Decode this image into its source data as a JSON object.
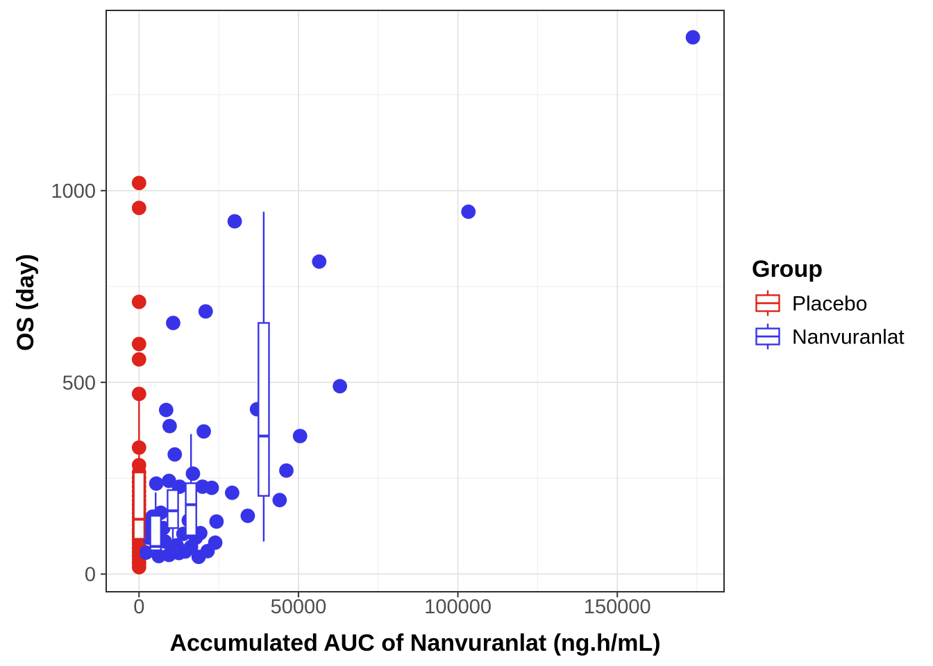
{
  "chart_data": {
    "type": "scatter",
    "overlays": [
      "boxplot"
    ],
    "title": "",
    "xlabel": "Accumulated AUC of Nanvuranlat (ng.h/mL)",
    "ylabel": "OS (day)",
    "x_ticks": [
      0,
      50000,
      100000,
      150000
    ],
    "x_minor_ticks": [
      25000,
      75000,
      125000,
      175000
    ],
    "y_ticks": [
      0,
      500,
      1000
    ],
    "y_minor_ticks": [
      250,
      750,
      1250
    ],
    "xlim": [
      -10500,
      183500
    ],
    "ylim": [
      -46,
      1470
    ],
    "grid": "major+minor",
    "legend": {
      "title": "Group",
      "position": "right",
      "items": [
        {
          "label": "Placebo",
          "color": "#dd231b"
        },
        {
          "label": "Nanvuranlat",
          "color": "#3734e8"
        }
      ]
    },
    "series": [
      {
        "name": "Placebo",
        "color": "#dd231b",
        "points": [
          [
            0,
            1020
          ],
          [
            0,
            955
          ],
          [
            0,
            710
          ],
          [
            0,
            600
          ],
          [
            0,
            560
          ],
          [
            0,
            470
          ],
          [
            0,
            330
          ],
          [
            0,
            284
          ],
          [
            0,
            265
          ],
          [
            0,
            252
          ],
          [
            0,
            240
          ],
          [
            0,
            228
          ],
          [
            0,
            216
          ],
          [
            0,
            204
          ],
          [
            0,
            192
          ],
          [
            0,
            181
          ],
          [
            0,
            170
          ],
          [
            0,
            159
          ],
          [
            0,
            148
          ],
          [
            0,
            138
          ],
          [
            0,
            128
          ],
          [
            0,
            118
          ],
          [
            0,
            108
          ],
          [
            0,
            98
          ],
          [
            0,
            88
          ],
          [
            0,
            78
          ],
          [
            0,
            68
          ],
          [
            0,
            58
          ],
          [
            0,
            48
          ],
          [
            0,
            38
          ],
          [
            0,
            28
          ],
          [
            0,
            18
          ]
        ]
      },
      {
        "name": "Nanvuranlat",
        "color": "#3734e8",
        "points": [
          [
            173700,
            1400
          ],
          [
            103300,
            945
          ],
          [
            30000,
            920
          ],
          [
            56500,
            815
          ],
          [
            20900,
            685
          ],
          [
            10700,
            655
          ],
          [
            63000,
            490
          ],
          [
            37000,
            430
          ],
          [
            8500,
            428
          ],
          [
            9600,
            386
          ],
          [
            20300,
            372
          ],
          [
            50500,
            360
          ],
          [
            11200,
            312
          ],
          [
            46200,
            270
          ],
          [
            16900,
            262
          ],
          [
            29200,
            212
          ],
          [
            5400,
            236
          ],
          [
            9400,
            243
          ],
          [
            12700,
            228
          ],
          [
            19900,
            228
          ],
          [
            22800,
            225
          ],
          [
            44100,
            193
          ],
          [
            34100,
            152
          ],
          [
            24300,
            137
          ],
          [
            23900,
            82
          ],
          [
            19200,
            107
          ],
          [
            2200,
            56
          ],
          [
            6200,
            47
          ],
          [
            9400,
            50
          ],
          [
            14500,
            59
          ],
          [
            16300,
            71
          ],
          [
            4300,
            150
          ],
          [
            7600,
            120
          ],
          [
            13900,
            105
          ],
          [
            3200,
            95
          ],
          [
            11800,
            75
          ],
          [
            17800,
            95
          ],
          [
            6800,
            160
          ],
          [
            15600,
            140
          ],
          [
            2900,
            125
          ],
          [
            10400,
            62
          ],
          [
            18700,
            45
          ],
          [
            8100,
            85
          ],
          [
            12500,
            55
          ],
          [
            21500,
            60
          ]
        ]
      }
    ],
    "boxplots": [
      {
        "group": "Placebo",
        "x": 0,
        "whisker_low": 15,
        "q1": 92,
        "median": 143,
        "q3": 265,
        "whisker_high": 470
      },
      {
        "group": "Nanvuranlat",
        "x": 5200,
        "whisker_low": 40,
        "q1": 62,
        "median": 72,
        "q3": 152,
        "whisker_high": 213
      },
      {
        "group": "Nanvuranlat",
        "x": 10600,
        "whisker_low": 45,
        "q1": 120,
        "median": 165,
        "q3": 219,
        "whisker_high": 240
      },
      {
        "group": "Nanvuranlat",
        "x": 16300,
        "whisker_low": 58,
        "q1": 101,
        "median": 181,
        "q3": 237,
        "whisker_high": 365
      },
      {
        "group": "Nanvuranlat",
        "x": 39100,
        "whisker_low": 85,
        "q1": 204,
        "median": 360,
        "q3": 655,
        "whisker_high": 945
      }
    ]
  }
}
